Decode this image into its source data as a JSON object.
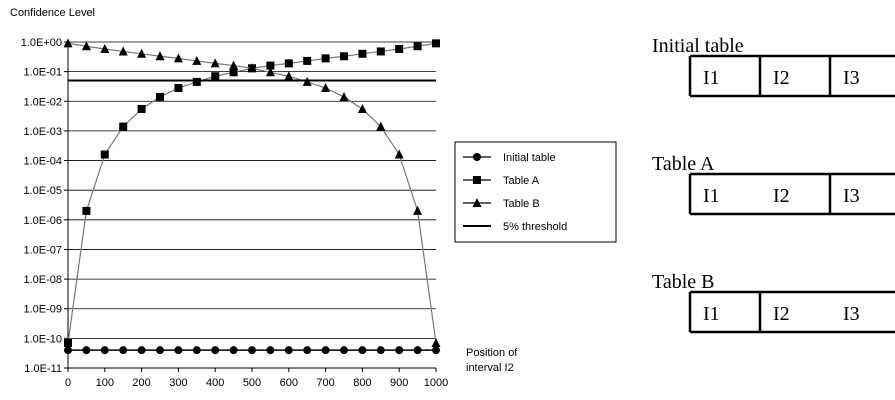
{
  "chart_data": {
    "type": "line",
    "ylabel": "Confidence Level",
    "xlabel": "Position of interval I2",
    "xlabel_lines": [
      "Position of",
      "interval I2"
    ],
    "y_scale": "log",
    "ylim": [
      1e-11,
      1
    ],
    "xlim": [
      0,
      1000
    ],
    "x_ticks": [
      "0",
      "100",
      "200",
      "300",
      "400",
      "500",
      "600",
      "700",
      "800",
      "900",
      "1000"
    ],
    "y_ticks": [
      "1.0E-11",
      "1.0E-10",
      "1.0E-09",
      "1.0E-08",
      "1.0E-07",
      "1.0E-06",
      "1.0E-05",
      "1.0E-04",
      "1.0E-03",
      "1.0E-02",
      "1.0E-01",
      "1.0E+00"
    ],
    "grid": "horizontal",
    "legend_position": "right",
    "x": [
      0,
      50,
      100,
      150,
      200,
      250,
      300,
      350,
      400,
      450,
      500,
      550,
      600,
      650,
      700,
      750,
      800,
      850,
      900,
      950,
      1000
    ],
    "series": [
      {
        "name": "Initial table",
        "marker": "circle",
        "values": [
          4e-11,
          4e-11,
          4e-11,
          4e-11,
          4e-11,
          4e-11,
          4e-11,
          4e-11,
          4e-11,
          4e-11,
          4e-11,
          4e-11,
          4e-11,
          4e-11,
          4e-11,
          4e-11,
          4e-11,
          4e-11,
          4e-11,
          4e-11,
          4e-11
        ]
      },
      {
        "name": "Table A",
        "marker": "square",
        "values": [
          7e-11,
          2e-06,
          0.00016,
          0.0014,
          0.0055,
          0.014,
          0.028,
          0.045,
          0.07,
          0.095,
          0.13,
          0.16,
          0.19,
          0.23,
          0.28,
          0.33,
          0.4,
          0.48,
          0.58,
          0.72,
          0.9
        ]
      },
      {
        "name": "Table B",
        "marker": "triangle",
        "values": [
          0.9,
          0.72,
          0.58,
          0.48,
          0.4,
          0.33,
          0.28,
          0.23,
          0.19,
          0.16,
          0.13,
          0.095,
          0.07,
          0.045,
          0.028,
          0.014,
          0.0055,
          0.0014,
          0.00016,
          2e-06,
          7e-11
        ]
      },
      {
        "name": "5% threshold",
        "marker": "none",
        "constant": 0.05
      }
    ]
  },
  "tables": [
    {
      "title": "Initial table",
      "cells": [
        "I1",
        "I2",
        "I3"
      ],
      "dividers": [
        true,
        true
      ]
    },
    {
      "title": "Table A",
      "cells": [
        "I1",
        "I2",
        "I3"
      ],
      "dividers": [
        false,
        true
      ]
    },
    {
      "title": "Table B",
      "cells": [
        "I1",
        "I2",
        "I3"
      ],
      "dividers": [
        true,
        false
      ]
    }
  ]
}
